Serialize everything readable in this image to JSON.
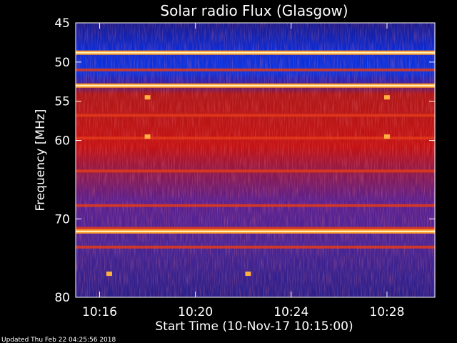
{
  "chart_data": {
    "type": "heatmap",
    "title": "Solar radio Flux (Glasgow)",
    "xlabel": "Start Time (10-Nov-17 10:15:00)",
    "ylabel": "Frequency [MHz]",
    "x_unit": "time (HH:MM)",
    "xlim": [
      "10:15:00",
      "10:30:00"
    ],
    "ylim": [
      45,
      80
    ],
    "y_inverted": true,
    "x_ticks": [
      "10:16",
      "10:20",
      "10:24",
      "10:28"
    ],
    "y_ticks": [
      45,
      50,
      55,
      60,
      70,
      80
    ],
    "colormap": "blue-red-yellow (low to high)",
    "bright_bands_mhz": [
      48.8,
      53.0,
      71.6
    ],
    "moderate_bands_mhz": [
      51.0,
      56.8,
      59.7,
      63.9,
      68.3,
      71.2,
      73.6
    ],
    "bursts": [
      {
        "time": "10:18",
        "freq_mhz": 54.5
      },
      {
        "time": "10:18",
        "freq_mhz": 59.5
      },
      {
        "time": "10:28",
        "freq_mhz": 54.5
      },
      {
        "time": "10:28",
        "freq_mhz": 59.5
      },
      {
        "time": "10:16.4",
        "freq_mhz": 77.0
      },
      {
        "time": "10:22.2",
        "freq_mhz": 77.0
      }
    ]
  },
  "footer": "Updated Thu Feb 22 04:25:56 2018",
  "colors": {
    "background": "#000000",
    "low": "#1b1b9a",
    "mid": "#c01010",
    "high": "#ffd060",
    "axis": "#ffffff"
  }
}
